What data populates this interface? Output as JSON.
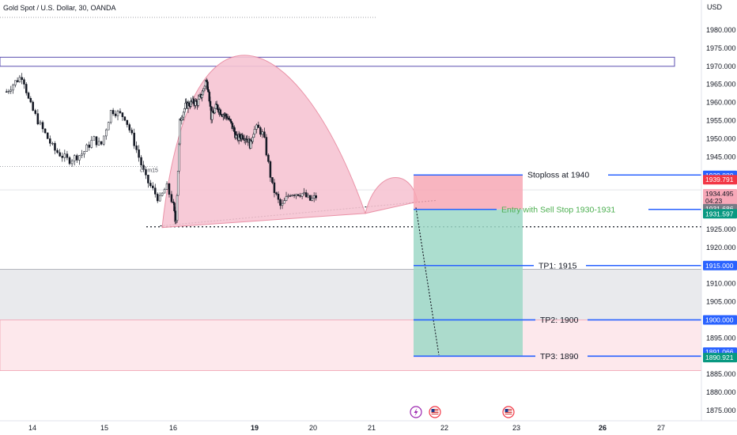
{
  "chart_data": {
    "type": "candlestick",
    "title": "Gold Spot / U.S. Dollar, 30, OANDA",
    "currency": "USD",
    "y_range": [
      1872,
      1990
    ],
    "y_ticks": [
      1980,
      1975,
      1970,
      1965,
      1960,
      1955,
      1950,
      1945,
      1940,
      1935,
      1930,
      1925,
      1920,
      1915,
      1910,
      1905,
      1900,
      1895,
      1890,
      1885,
      1880,
      1875
    ],
    "y_tick_labels": [
      "1980.000",
      "1975.000",
      "1970.000",
      "1965.000",
      "1960.000",
      "1955.000",
      "1950.000",
      "1945.000",
      "1940.000",
      "1935.000",
      "1930.000",
      "1925.000",
      "1920.000",
      "1915.000",
      "1910.000",
      "1905.000",
      "1900.000",
      "1895.000",
      "1890.000",
      "1885.000",
      "1880.000",
      "1875.000"
    ],
    "x_labels": [
      {
        "day": 14,
        "label": "14",
        "bold": false
      },
      {
        "day": 15,
        "label": "15",
        "bold": false
      },
      {
        "day": 16,
        "label": "16",
        "bold": false
      },
      {
        "day": 19,
        "label": "19",
        "bold": true
      },
      {
        "day": 20,
        "label": "20",
        "bold": false
      },
      {
        "day": 21,
        "label": "21",
        "bold": false
      },
      {
        "day": 22,
        "label": "22",
        "bold": false
      },
      {
        "day": 23,
        "label": "23",
        "bold": false
      },
      {
        "day": 26,
        "label": "26",
        "bold": true
      },
      {
        "day": 27,
        "label": "27",
        "bold": false
      }
    ],
    "price_series": [
      [
        13.6,
        1963
      ],
      [
        13.75,
        1966
      ],
      [
        13.85,
        1967.5
      ],
      [
        13.95,
        1960
      ],
      [
        14.1,
        1954
      ],
      [
        14.3,
        1947
      ],
      [
        14.5,
        1944
      ],
      [
        14.7,
        1946
      ],
      [
        14.85,
        1950
      ],
      [
        14.95,
        1948
      ],
      [
        15.1,
        1958
      ],
      [
        15.3,
        1956
      ],
      [
        15.45,
        1948
      ],
      [
        15.6,
        1939
      ],
      [
        15.8,
        1933
      ],
      [
        15.9,
        1937
      ],
      [
        16.0,
        1932
      ],
      [
        16.05,
        1929
      ],
      [
        16.1,
        1926
      ],
      [
        16.25,
        1955
      ],
      [
        16.45,
        1959
      ],
      [
        16.7,
        1960
      ],
      [
        16.9,
        1960
      ],
      [
        17.1,
        1963
      ],
      [
        17.2,
        1966
      ],
      [
        17.3,
        1964
      ],
      [
        17.4,
        1956
      ],
      [
        17.6,
        1959
      ],
      [
        17.8,
        1957
      ],
      [
        18.0,
        1956
      ],
      [
        18.2,
        1953
      ],
      [
        18.35,
        1950
      ],
      [
        18.55,
        1951
      ],
      [
        18.75,
        1950
      ],
      [
        18.85,
        1948
      ],
      [
        18.95,
        1952
      ],
      [
        19.05,
        1953
      ],
      [
        19.15,
        1951
      ],
      [
        19.3,
        1937
      ],
      [
        19.45,
        1931
      ],
      [
        19.6,
        1935
      ],
      [
        19.8,
        1935
      ],
      [
        19.95,
        1933
      ],
      [
        20.05,
        1934
      ]
    ],
    "price_dates": {
      "start_day": 13.5,
      "date_axis_days": [
        14,
        15,
        16,
        19,
        20,
        21,
        22,
        23,
        26,
        27
      ]
    },
    "stop_price": 1940,
    "entry_price": 1930.5,
    "take_profits": [
      1915,
      1900,
      1890
    ],
    "current_price": 1934.495,
    "neckline_start": {
      "day": 16.1,
      "price": 1925.5
    },
    "neckline_end": {
      "day": 21.9,
      "price": 1933
    },
    "horizontal_level": 1925.7,
    "resistance_zone": [
      1970,
      1972.5
    ],
    "grey_zone": [
      1900,
      1914
    ],
    "pink_zone": [
      1886,
      1900
    ],
    "annotations": {
      "stoploss": "Stoploss at 1940",
      "entry": "Entry with Sell Stop 1930-1931",
      "tp1": "TP1: 1915",
      "tp2": "TP2: 1900",
      "tp3": "TP3: 1890",
      "small_label": "ch m15"
    },
    "price_tags": [
      {
        "text": "1939.880",
        "price": 1939.88,
        "color": "#2962ff"
      },
      {
        "text": "1939.791",
        "price": 1938.7,
        "color": "#f23645"
      },
      {
        "text": "1934.495",
        "price": 1934.8,
        "color": "#f7a8b8",
        "text_color": "#131722"
      },
      {
        "text": "04:23",
        "price": 1932.9,
        "color": "#f7a8b8",
        "text_color": "#131722"
      },
      {
        "text": "1931.686",
        "price": 1930.7,
        "color": "#787b86"
      },
      {
        "text": "1931.597",
        "price": 1929.3,
        "color": "#089981"
      },
      {
        "text": "1915.000",
        "price": 1915.0,
        "color": "#2962ff"
      },
      {
        "text": "1900.000",
        "price": 1900.0,
        "color": "#2962ff"
      },
      {
        "text": "1891.066",
        "price": 1891.1,
        "color": "#2962ff"
      },
      {
        "text": "1890.921",
        "price": 1889.6,
        "color": "#089981"
      }
    ],
    "colors": {
      "up": "#131722",
      "down": "#131722",
      "pattern_fill": "#f7c5d3",
      "pattern_stroke": "#e8889f",
      "risk_zone": "#f7a8b5",
      "reward_zone": "#9ed8c7",
      "tp_line": "#2962ff",
      "entry_text": "#4caf50",
      "resistance_stroke": "#5b4fb0"
    },
    "event_icons": [
      "lightning-icon",
      "us-flag-icon",
      "us-flag-icon"
    ]
  }
}
